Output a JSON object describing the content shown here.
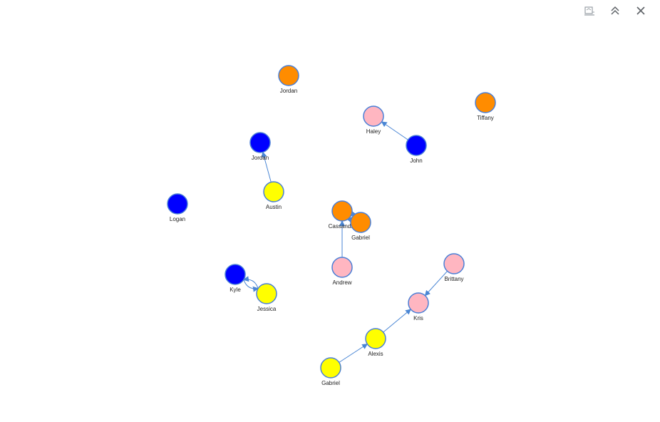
{
  "toolbar": {
    "buttons": [
      {
        "name": "export-button",
        "icon": "export-image-icon"
      },
      {
        "name": "collapse-button",
        "icon": "double-chevron-up-icon"
      },
      {
        "name": "close-button",
        "icon": "close-icon"
      }
    ]
  },
  "colors": {
    "orange": "#ff8c00",
    "pink": "#ffb6c1",
    "blue": "#0000ff",
    "yellow": "#ffff00",
    "node_border": "#4a7fd6",
    "edge": "#4a86d4"
  },
  "graph": {
    "nodes": [
      {
        "id": "jordan_o",
        "label": "Jordan",
        "color": "orange"
      },
      {
        "id": "tiffany",
        "label": "Tiffany",
        "color": "orange"
      },
      {
        "id": "haley",
        "label": "Haley",
        "color": "pink"
      },
      {
        "id": "john",
        "label": "John",
        "color": "blue"
      },
      {
        "id": "jordan_b",
        "label": "Jordan",
        "color": "blue"
      },
      {
        "id": "austin",
        "label": "Austin",
        "color": "yellow"
      },
      {
        "id": "logan",
        "label": "Logan",
        "color": "blue"
      },
      {
        "id": "cassandra",
        "label": "Cassandra",
        "color": "orange"
      },
      {
        "id": "gabriel_o",
        "label": "Gabriel",
        "color": "orange"
      },
      {
        "id": "andrew",
        "label": "Andrew",
        "color": "pink"
      },
      {
        "id": "kyle",
        "label": "Kyle",
        "color": "blue"
      },
      {
        "id": "jessica",
        "label": "Jessica",
        "color": "yellow"
      },
      {
        "id": "brittany",
        "label": "Brittany",
        "color": "pink"
      },
      {
        "id": "kris",
        "label": "Kris",
        "color": "pink"
      },
      {
        "id": "alexis",
        "label": "Alexis",
        "color": "yellow"
      },
      {
        "id": "gabriel_y",
        "label": "Gabriel",
        "color": "yellow"
      }
    ],
    "edges": [
      {
        "from": "john",
        "to": "haley",
        "curve": false
      },
      {
        "from": "austin",
        "to": "jordan_b",
        "curve": false
      },
      {
        "from": "andrew",
        "to": "cassandra",
        "curve": false
      },
      {
        "from": "cassandra",
        "to": "gabriel_o",
        "curve": true
      },
      {
        "from": "gabriel_o",
        "to": "cassandra",
        "curve": true
      },
      {
        "from": "kyle",
        "to": "jessica",
        "curve": true
      },
      {
        "from": "jessica",
        "to": "kyle",
        "curve": true
      },
      {
        "from": "brittany",
        "to": "kris",
        "curve": false
      },
      {
        "from": "alexis",
        "to": "kris",
        "curve": false
      },
      {
        "from": "gabriel_y",
        "to": "alexis",
        "curve": false
      }
    ]
  }
}
